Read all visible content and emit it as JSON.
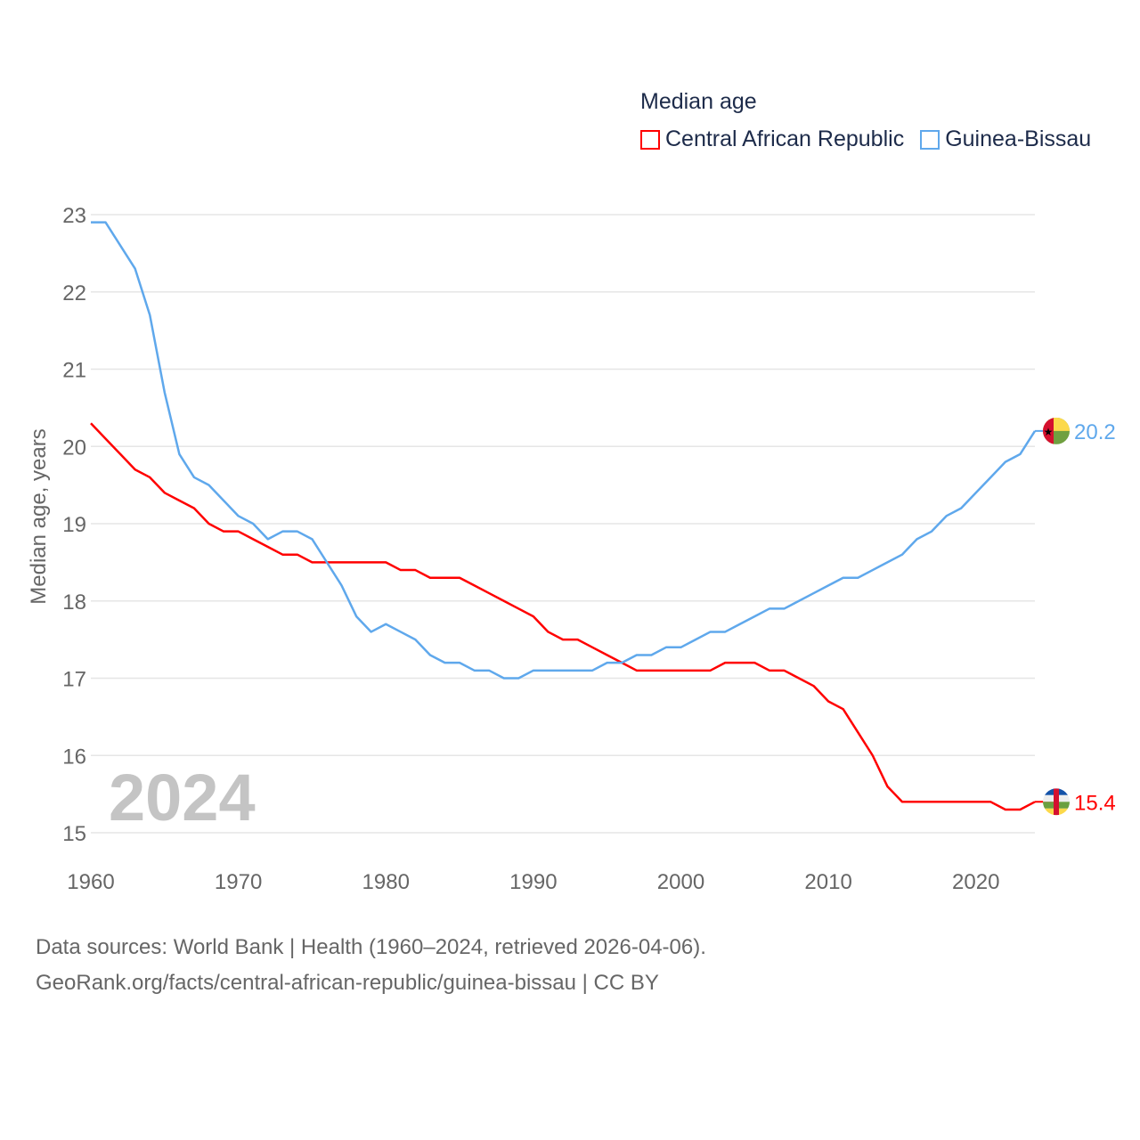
{
  "chart_data": {
    "type": "line",
    "title": "Median age",
    "xlabel": "",
    "ylabel": "Median age, years",
    "xlim": [
      1960,
      2024
    ],
    "ylim": [
      15,
      23
    ],
    "x_ticks": [
      "1960",
      "1970",
      "1980",
      "1990",
      "2000",
      "2010",
      "2020"
    ],
    "y_ticks": [
      "15",
      "16",
      "17",
      "18",
      "19",
      "20",
      "21",
      "22",
      "23"
    ],
    "grid": true,
    "legend_position": "top-right",
    "year_watermark": "2024",
    "x": [
      1960,
      1961,
      1962,
      1963,
      1964,
      1965,
      1966,
      1967,
      1968,
      1969,
      1970,
      1971,
      1972,
      1973,
      1974,
      1975,
      1976,
      1977,
      1978,
      1979,
      1980,
      1981,
      1982,
      1983,
      1984,
      1985,
      1986,
      1987,
      1988,
      1989,
      1990,
      1991,
      1992,
      1993,
      1994,
      1995,
      1996,
      1997,
      1998,
      1999,
      2000,
      2001,
      2002,
      2003,
      2004,
      2005,
      2006,
      2007,
      2008,
      2009,
      2010,
      2011,
      2012,
      2013,
      2014,
      2015,
      2016,
      2017,
      2018,
      2019,
      2020,
      2021,
      2022,
      2023,
      2024
    ],
    "series": [
      {
        "name": "Central African Republic",
        "color": "#ff0000",
        "end_label": "15.4",
        "values": [
          20.3,
          20.1,
          19.9,
          19.7,
          19.6,
          19.4,
          19.3,
          19.2,
          19.0,
          18.9,
          18.9,
          18.8,
          18.7,
          18.6,
          18.6,
          18.5,
          18.5,
          18.5,
          18.5,
          18.5,
          18.5,
          18.4,
          18.4,
          18.3,
          18.3,
          18.3,
          18.2,
          18.1,
          18.0,
          17.9,
          17.8,
          17.6,
          17.5,
          17.5,
          17.4,
          17.3,
          17.2,
          17.1,
          17.1,
          17.1,
          17.1,
          17.1,
          17.1,
          17.2,
          17.2,
          17.2,
          17.1,
          17.1,
          17.0,
          16.9,
          16.7,
          16.6,
          16.3,
          16.0,
          15.6,
          15.4,
          15.4,
          15.4,
          15.4,
          15.4,
          15.4,
          15.4,
          15.3,
          15.3,
          15.4
        ]
      },
      {
        "name": "Guinea-Bissau",
        "color": "#5fa8ec",
        "end_label": "20.2",
        "values": [
          22.9,
          22.9,
          22.6,
          22.3,
          21.7,
          20.7,
          19.9,
          19.6,
          19.5,
          19.3,
          19.1,
          19.0,
          18.8,
          18.9,
          18.9,
          18.8,
          18.5,
          18.2,
          17.8,
          17.6,
          17.7,
          17.6,
          17.5,
          17.3,
          17.2,
          17.2,
          17.1,
          17.1,
          17.0,
          17.0,
          17.1,
          17.1,
          17.1,
          17.1,
          17.1,
          17.2,
          17.2,
          17.3,
          17.3,
          17.4,
          17.4,
          17.5,
          17.6,
          17.6,
          17.7,
          17.8,
          17.9,
          17.9,
          18.0,
          18.1,
          18.2,
          18.3,
          18.3,
          18.4,
          18.5,
          18.6,
          18.8,
          18.9,
          19.1,
          19.2,
          19.4,
          19.6,
          19.8,
          19.9,
          20.2
        ]
      }
    ]
  },
  "footer": {
    "line1": "Data sources: World Bank | Health (1960–2024, retrieved 2026-04-06).",
    "line2": "GeoRank.org/facts/central-african-republic/guinea-bissau | CC BY"
  }
}
